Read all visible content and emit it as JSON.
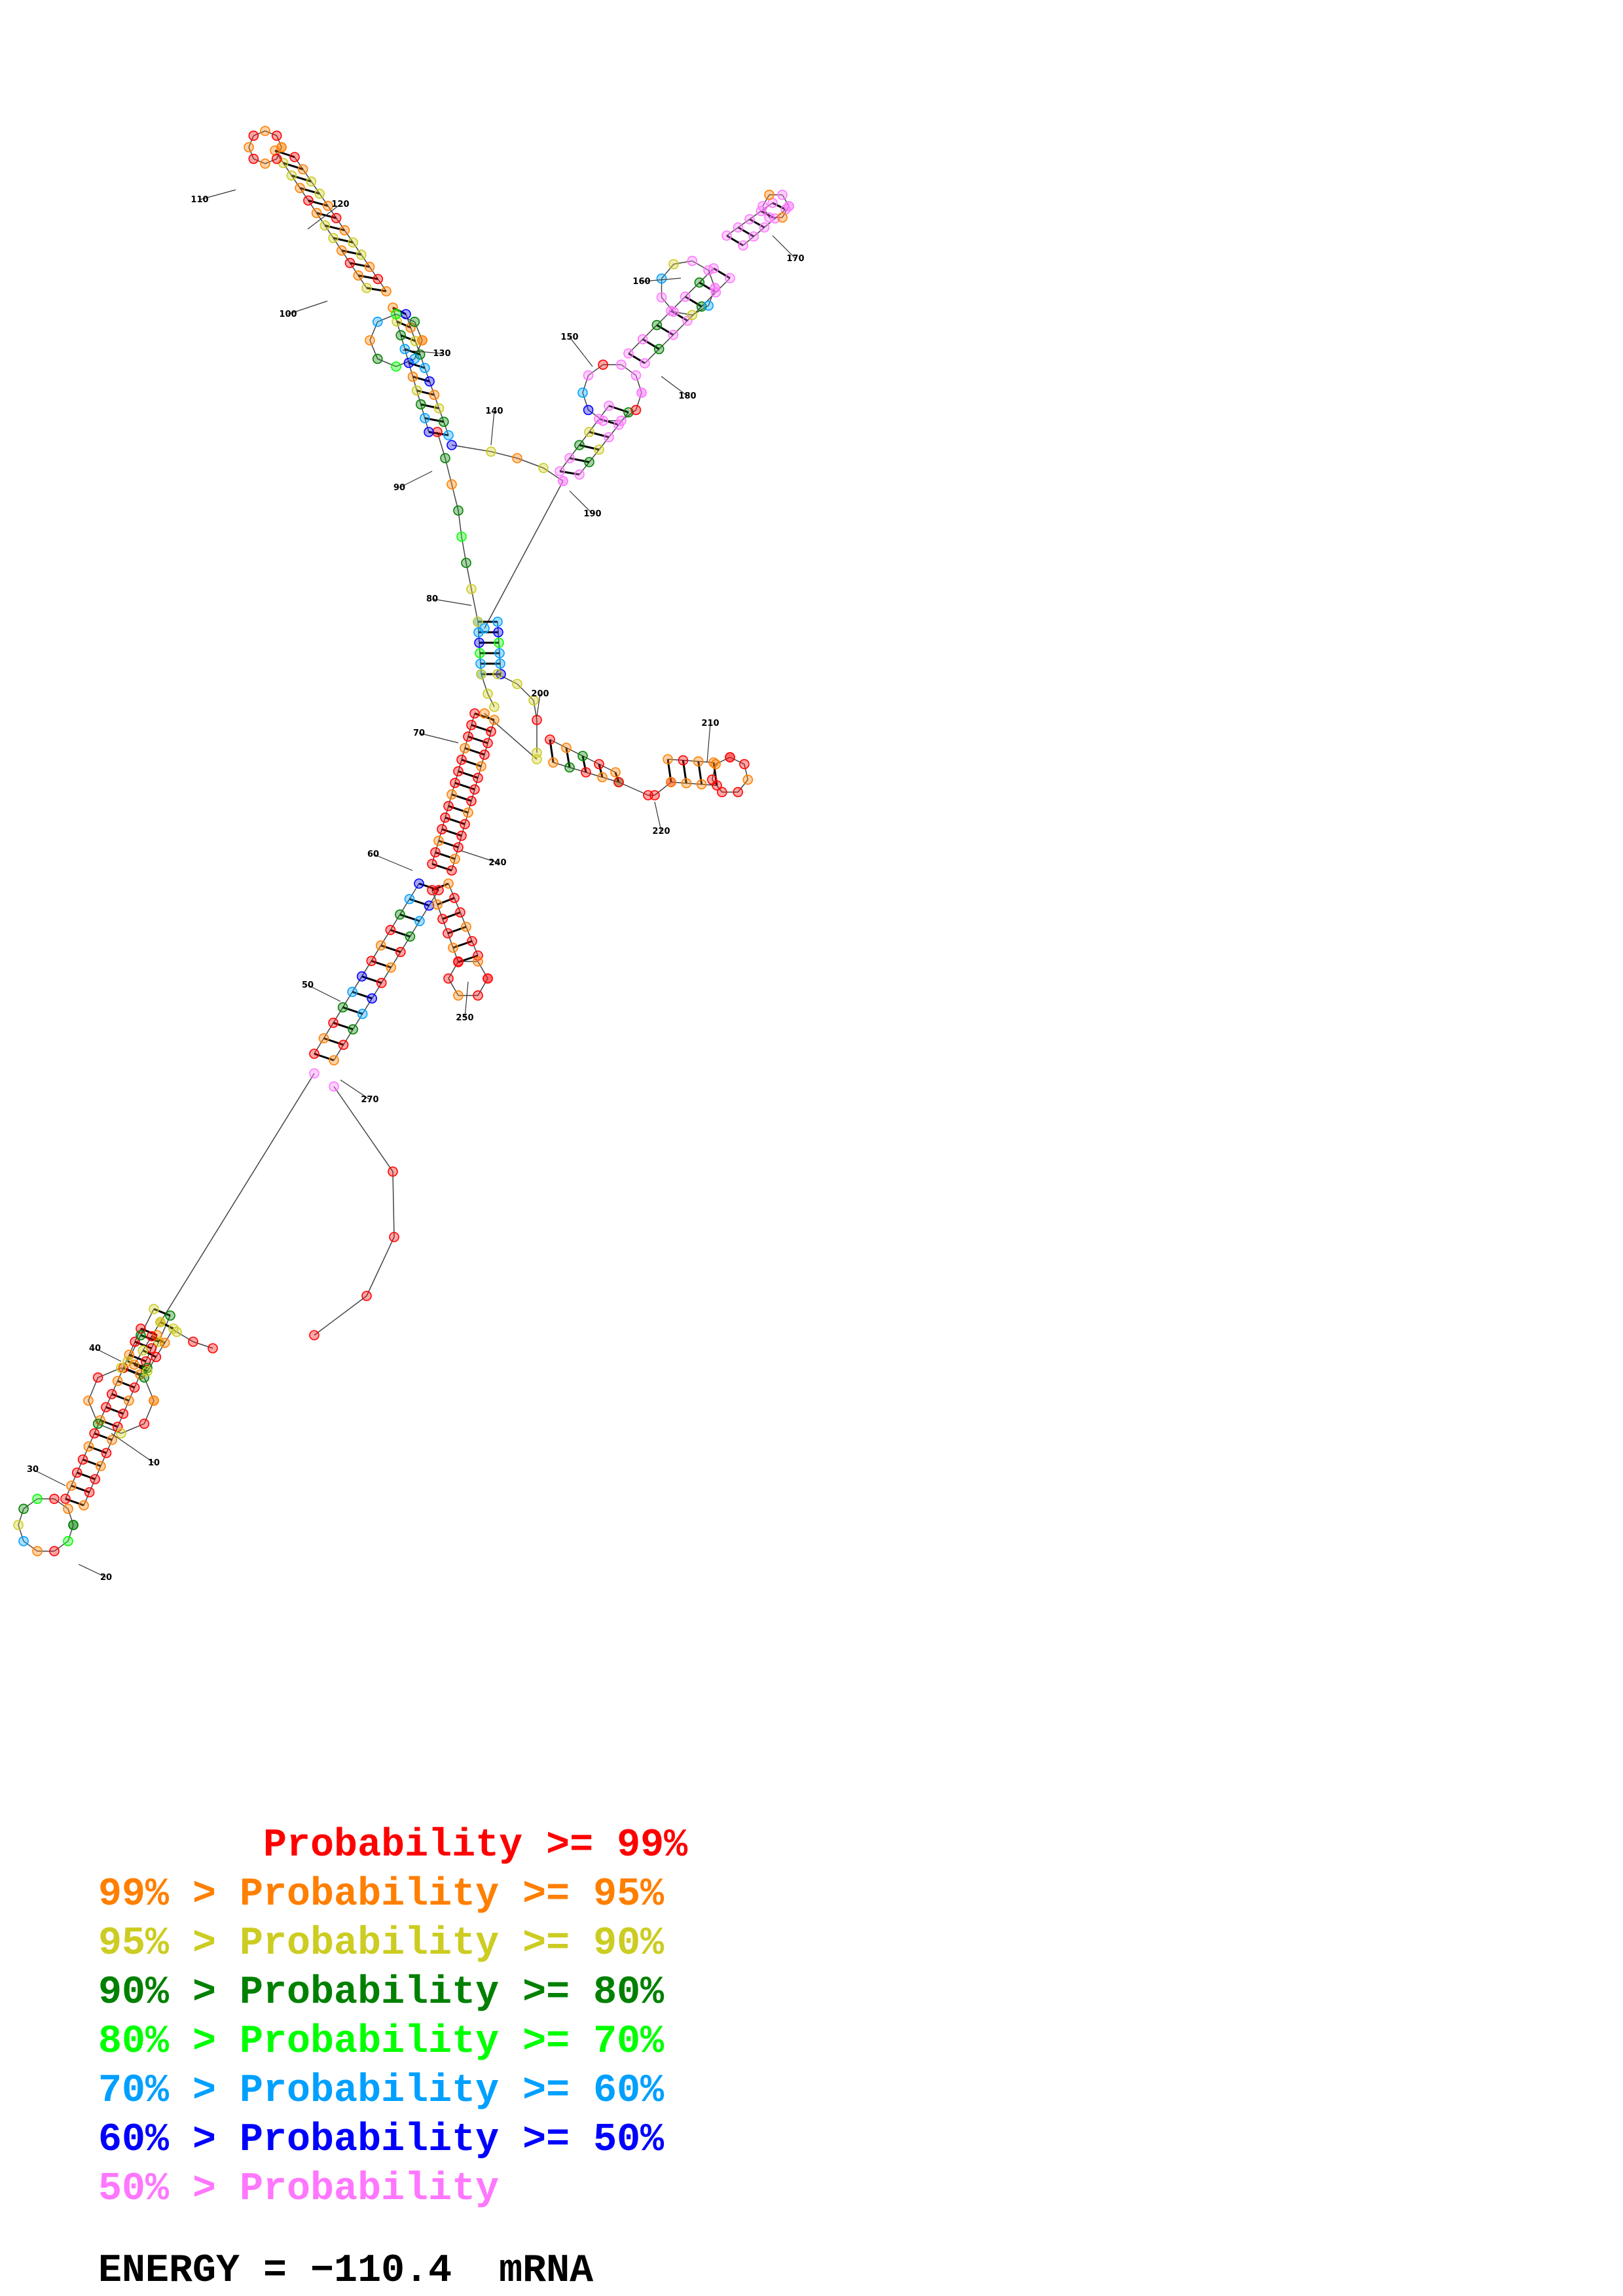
{
  "legend": [
    {
      "text": "       Probability >= 99%",
      "color": "#ff0000"
    },
    {
      "text": "99% > Probability >= 95%",
      "color": "#ff7f00"
    },
    {
      "text": "95% > Probability >= 90%",
      "color": "#cccc22"
    },
    {
      "text": "90% > Probability >= 80%",
      "color": "#008000"
    },
    {
      "text": "80% > Probability >= 70%",
      "color": "#00ff00"
    },
    {
      "text": "70% > Probability >= 60%",
      "color": "#00a0ff"
    },
    {
      "text": "60% > Probability >= 50%",
      "color": "#0000ff"
    },
    {
      "text": "50% > Probability",
      "color": "#ff77ff"
    }
  ],
  "energy_label": "ENERGY = −110.4  mRNA",
  "palette": {
    "p99": "#ff0000",
    "p95": "#ff7f00",
    "p90": "#cccc22",
    "p80": "#008000",
    "p70": "#00ff00",
    "p60": "#00a0ff",
    "p50": "#0000ff",
    "plow": "#ff77ff"
  },
  "position_labels": [
    "10",
    "20",
    "30",
    "40",
    "50",
    "60",
    "70",
    "80",
    "90",
    "100",
    "110",
    "120",
    "130",
    "140",
    "150",
    "160",
    "170",
    "180",
    "190",
    "200",
    "210",
    "220",
    "240",
    "250",
    "270"
  ]
}
